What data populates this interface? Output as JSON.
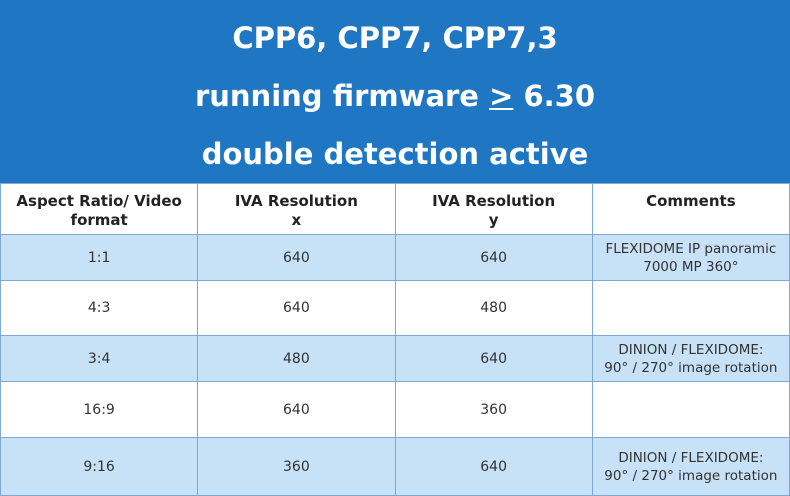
{
  "title": {
    "line1": "CPP6, CPP7, CPP7,3",
    "line2_prefix": "running firmware ",
    "line2_symbol": ">",
    "line2_suffix": " 6.30",
    "line3": "double detection active"
  },
  "table": {
    "headers": [
      [
        "Aspect Ratio/ Video",
        "format"
      ],
      [
        "IVA Resolution",
        "x"
      ],
      [
        "IVA Resolution",
        "y"
      ],
      [
        "Comments",
        ""
      ]
    ],
    "rows": [
      {
        "ratio": "1:1",
        "x": "640",
        "y": "640",
        "comment": [
          "FLEXIDOME IP panoramic",
          "7000 MP 360°"
        ]
      },
      {
        "ratio": "4:3",
        "x": "640",
        "y": "480",
        "comment": [
          "",
          ""
        ]
      },
      {
        "ratio": "3:4",
        "x": "480",
        "y": "640",
        "comment": [
          "DINION / FLEXIDOME:",
          "90° / 270° image rotation"
        ]
      },
      {
        "ratio": "16:9",
        "x": "640",
        "y": "360",
        "comment": [
          "",
          ""
        ]
      },
      {
        "ratio": "9:16",
        "x": "360",
        "y": "640",
        "comment": [
          "DINION / FLEXIDOME:",
          "90° / 270° image rotation"
        ]
      }
    ]
  },
  "colors": {
    "banner": "#1f76c2",
    "row_highlight": "#c7e1f6"
  }
}
